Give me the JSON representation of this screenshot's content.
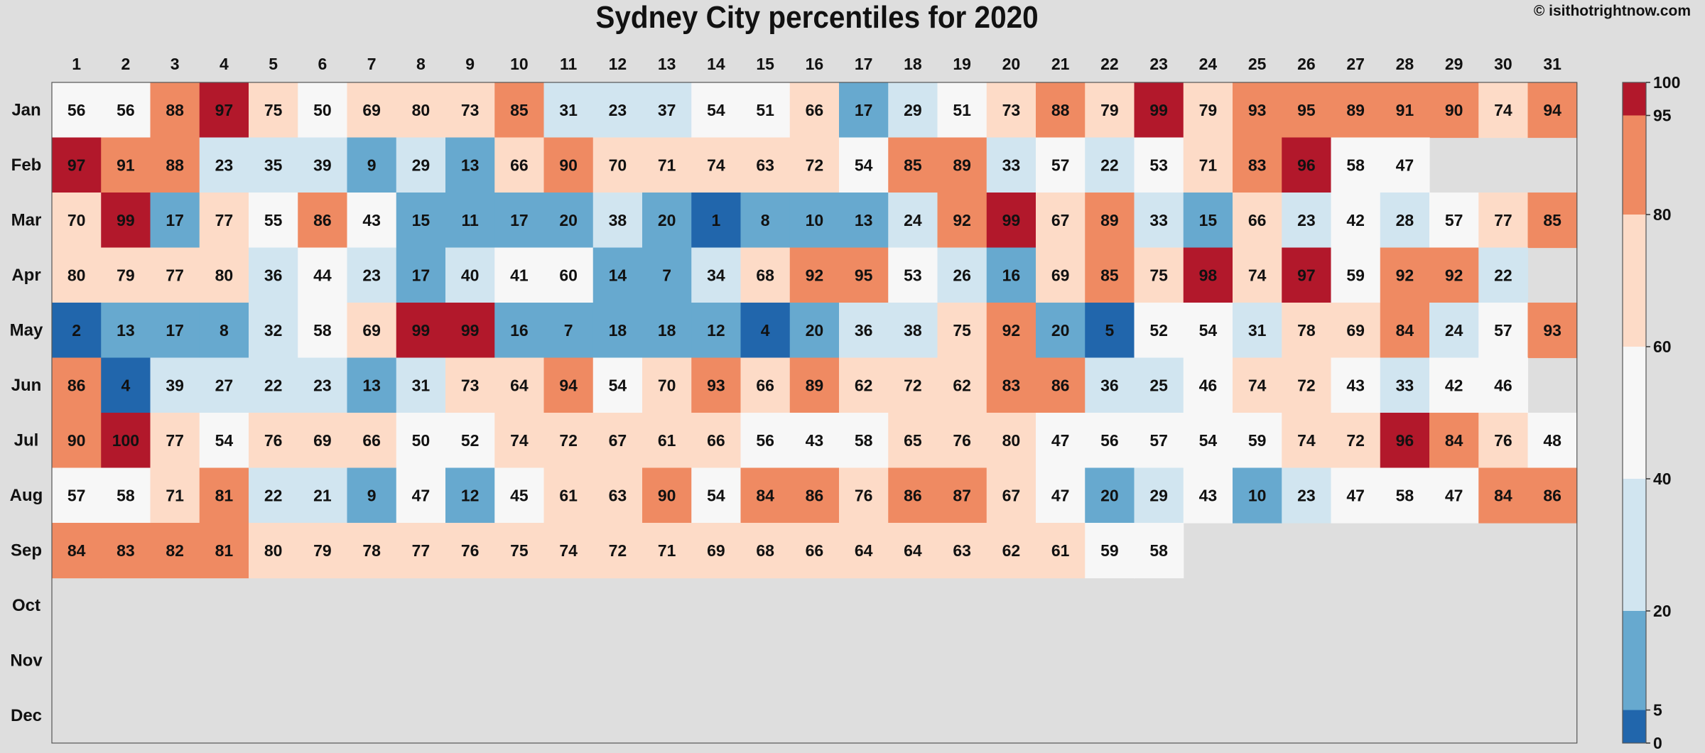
{
  "credit": "© isithotrightnow.com",
  "chart_data": {
    "type": "heatmap",
    "title": "Sydney City percentiles for 2020",
    "xlabel": "",
    "ylabel": "",
    "days": [
      1,
      2,
      3,
      4,
      5,
      6,
      7,
      8,
      9,
      10,
      11,
      12,
      13,
      14,
      15,
      16,
      17,
      18,
      19,
      20,
      21,
      22,
      23,
      24,
      25,
      26,
      27,
      28,
      29,
      30,
      31
    ],
    "months": [
      "Jan",
      "Feb",
      "Mar",
      "Apr",
      "May",
      "Jun",
      "Jul",
      "Aug",
      "Sep",
      "Oct",
      "Nov",
      "Dec"
    ],
    "values": [
      [
        56,
        56,
        88,
        97,
        75,
        50,
        69,
        80,
        73,
        85,
        31,
        23,
        37,
        54,
        51,
        66,
        17,
        29,
        51,
        73,
        88,
        79,
        99,
        79,
        93,
        95,
        89,
        91,
        90,
        74,
        94
      ],
      [
        97,
        91,
        88,
        23,
        35,
        39,
        9,
        29,
        13,
        66,
        90,
        70,
        71,
        74,
        63,
        72,
        54,
        85,
        89,
        33,
        57,
        22,
        53,
        71,
        83,
        96,
        58,
        47
      ],
      [
        70,
        99,
        17,
        77,
        55,
        86,
        43,
        15,
        11,
        17,
        20,
        38,
        20,
        1,
        8,
        10,
        13,
        24,
        92,
        99,
        67,
        89,
        33,
        15,
        66,
        23,
        42,
        28,
        57,
        77,
        85
      ],
      [
        80,
        79,
        77,
        80,
        36,
        44,
        23,
        17,
        40,
        41,
        60,
        14,
        7,
        34,
        68,
        92,
        95,
        53,
        26,
        16,
        69,
        85,
        75,
        98,
        74,
        97,
        59,
        92,
        92,
        22
      ],
      [
        2,
        13,
        17,
        8,
        32,
        58,
        69,
        99,
        99,
        16,
        7,
        18,
        18,
        12,
        4,
        20,
        36,
        38,
        75,
        92,
        20,
        5,
        52,
        54,
        31,
        78,
        69,
        84,
        24,
        57,
        93
      ],
      [
        86,
        4,
        39,
        27,
        22,
        23,
        13,
        31,
        73,
        64,
        94,
        54,
        70,
        93,
        66,
        89,
        62,
        72,
        62,
        83,
        86,
        36,
        25,
        46,
        74,
        72,
        43,
        33,
        42,
        46
      ],
      [
        90,
        100,
        77,
        54,
        76,
        69,
        66,
        50,
        52,
        74,
        72,
        67,
        61,
        66,
        56,
        43,
        58,
        65,
        76,
        80,
        47,
        56,
        57,
        54,
        59,
        74,
        72,
        96,
        84,
        76,
        48
      ],
      [
        57,
        58,
        71,
        81,
        22,
        21,
        9,
        47,
        12,
        45,
        61,
        63,
        90,
        54,
        84,
        86,
        76,
        86,
        87,
        67,
        47,
        20,
        29,
        43,
        10,
        23,
        47,
        58,
        47,
        84,
        86
      ],
      [
        84,
        83,
        82,
        81,
        80,
        79,
        78,
        77,
        76,
        75,
        74,
        72,
        71,
        69,
        68,
        66,
        64,
        64,
        63,
        62,
        61,
        59,
        58
      ],
      [],
      [],
      []
    ],
    "colorbar": {
      "bounds": [
        0,
        5,
        20,
        40,
        60,
        80,
        95,
        100
      ],
      "colors": [
        "#2166ac",
        "#67a9cf",
        "#d1e5f0",
        "#f7f7f7",
        "#fddbc7",
        "#ef8a62",
        "#b2182b"
      ]
    },
    "background_color": "#dedede",
    "grid": false
  }
}
